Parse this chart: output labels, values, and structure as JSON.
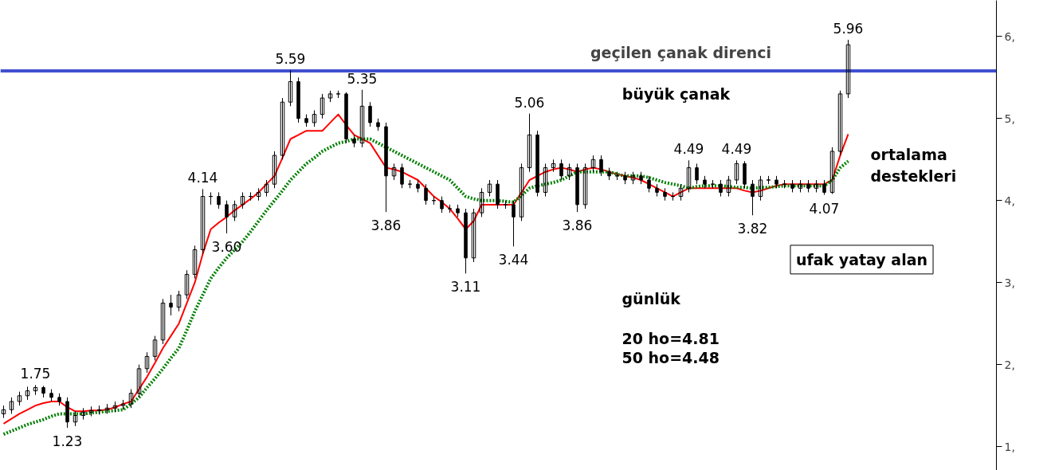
{
  "chart_data": {
    "type": "candlestick",
    "categories": [
      null,
      null,
      null,
      null,
      null,
      null,
      null,
      null,
      null,
      null,
      null,
      null,
      null,
      null,
      null,
      null,
      null,
      null,
      null,
      null,
      null,
      null,
      null,
      null,
      null,
      null,
      null,
      null,
      null,
      null,
      null,
      null,
      null,
      null,
      null,
      null,
      null,
      null,
      null,
      null,
      null,
      null,
      null,
      null,
      null,
      null,
      null,
      null,
      null,
      null,
      null,
      null,
      null,
      null,
      null,
      null,
      null,
      null,
      null,
      null,
      null,
      null,
      null,
      null,
      null,
      null,
      null,
      null,
      null,
      null,
      null,
      null,
      null,
      null,
      null,
      null,
      null,
      null,
      null,
      null,
      null,
      null,
      null,
      null,
      null,
      null,
      null,
      null,
      null,
      null,
      null,
      null,
      null,
      null,
      null,
      null,
      null,
      null,
      null,
      null,
      null,
      null,
      null,
      null,
      null,
      null,
      null
    ],
    "ohlc": [
      [
        1.4,
        1.5,
        1.35,
        1.45
      ],
      [
        1.45,
        1.6,
        1.4,
        1.55
      ],
      [
        1.55,
        1.67,
        1.5,
        1.62
      ],
      [
        1.62,
        1.73,
        1.57,
        1.68
      ],
      [
        1.68,
        1.75,
        1.63,
        1.72
      ],
      [
        1.72,
        1.74,
        1.6,
        1.65
      ],
      [
        1.65,
        1.7,
        1.55,
        1.6
      ],
      [
        1.6,
        1.65,
        1.5,
        1.55
      ],
      [
        1.55,
        1.6,
        1.23,
        1.3
      ],
      [
        1.3,
        1.43,
        1.25,
        1.38
      ],
      [
        1.38,
        1.47,
        1.33,
        1.42
      ],
      [
        1.42,
        1.49,
        1.37,
        1.44
      ],
      [
        1.44,
        1.5,
        1.39,
        1.45
      ],
      [
        1.45,
        1.52,
        1.4,
        1.47
      ],
      [
        1.47,
        1.55,
        1.42,
        1.5
      ],
      [
        1.5,
        1.57,
        1.45,
        1.52
      ],
      [
        1.52,
        1.7,
        1.47,
        1.65
      ],
      [
        1.65,
        2.0,
        1.6,
        1.95
      ],
      [
        1.95,
        2.15,
        1.9,
        2.1
      ],
      [
        2.1,
        2.35,
        2.05,
        2.3
      ],
      [
        2.3,
        2.8,
        2.25,
        2.75
      ],
      [
        2.75,
        2.85,
        2.6,
        2.7
      ],
      [
        2.7,
        2.9,
        2.65,
        2.85
      ],
      [
        2.85,
        3.15,
        2.8,
        3.1
      ],
      [
        3.1,
        3.45,
        3.05,
        3.4
      ],
      [
        3.4,
        4.14,
        3.35,
        4.05
      ],
      [
        4.05,
        4.1,
        3.95,
        4.05
      ],
      [
        4.05,
        4.1,
        3.9,
        3.95
      ],
      [
        3.95,
        4.0,
        3.6,
        3.8
      ],
      [
        3.8,
        4.0,
        3.75,
        3.95
      ],
      [
        3.95,
        4.1,
        3.9,
        4.05
      ],
      [
        4.05,
        4.1,
        4.0,
        4.05
      ],
      [
        4.05,
        4.15,
        4.0,
        4.1
      ],
      [
        4.1,
        4.25,
        4.05,
        4.2
      ],
      [
        4.2,
        4.6,
        4.15,
        4.55
      ],
      [
        4.55,
        5.25,
        4.5,
        5.2
      ],
      [
        5.2,
        5.59,
        5.15,
        5.45
      ],
      [
        5.45,
        5.5,
        4.95,
        5.0
      ],
      [
        5.0,
        5.05,
        4.9,
        4.95
      ],
      [
        4.95,
        5.1,
        4.9,
        5.05
      ],
      [
        5.05,
        5.3,
        5.0,
        5.25
      ],
      [
        5.25,
        5.34,
        5.2,
        5.3
      ],
      [
        5.3,
        5.34,
        5.25,
        5.3
      ],
      [
        5.3,
        5.32,
        4.7,
        4.75
      ],
      [
        4.75,
        4.8,
        4.65,
        4.7
      ],
      [
        4.7,
        5.35,
        4.65,
        5.15
      ],
      [
        5.15,
        5.2,
        4.9,
        4.95
      ],
      [
        4.95,
        5.0,
        4.85,
        4.9
      ],
      [
        4.9,
        4.95,
        3.86,
        4.3
      ],
      [
        4.3,
        4.45,
        4.25,
        4.4
      ],
      [
        4.4,
        4.45,
        4.15,
        4.2
      ],
      [
        4.2,
        4.25,
        4.15,
        4.2
      ],
      [
        4.2,
        4.25,
        4.1,
        4.15
      ],
      [
        4.15,
        4.2,
        3.95,
        4.0
      ],
      [
        4.0,
        4.05,
        3.95,
        4.0
      ],
      [
        4.0,
        4.05,
        3.85,
        3.9
      ],
      [
        3.9,
        3.95,
        3.85,
        3.9
      ],
      [
        3.9,
        3.95,
        3.8,
        3.85
      ],
      [
        3.85,
        3.9,
        3.11,
        3.3
      ],
      [
        3.3,
        3.9,
        3.25,
        3.85
      ],
      [
        3.85,
        4.15,
        3.8,
        4.1
      ],
      [
        4.1,
        4.25,
        4.05,
        4.2
      ],
      [
        4.2,
        4.25,
        3.9,
        3.95
      ],
      [
        3.95,
        4.0,
        3.9,
        3.95
      ],
      [
        3.95,
        4.0,
        3.44,
        3.8
      ],
      [
        3.8,
        4.45,
        3.75,
        4.4
      ],
      [
        4.4,
        5.06,
        4.35,
        4.8
      ],
      [
        4.8,
        4.85,
        4.05,
        4.1
      ],
      [
        4.1,
        4.45,
        4.05,
        4.4
      ],
      [
        4.4,
        4.5,
        4.35,
        4.45
      ],
      [
        4.45,
        4.5,
        4.25,
        4.3
      ],
      [
        4.3,
        4.45,
        4.25,
        4.4
      ],
      [
        4.4,
        4.45,
        3.86,
        3.95
      ],
      [
        3.95,
        4.45,
        3.9,
        4.4
      ],
      [
        4.4,
        4.55,
        4.35,
        4.5
      ],
      [
        4.5,
        4.55,
        4.3,
        4.35
      ],
      [
        4.35,
        4.4,
        4.25,
        4.3
      ],
      [
        4.3,
        4.35,
        4.25,
        4.3
      ],
      [
        4.3,
        4.35,
        4.2,
        4.25
      ],
      [
        4.25,
        4.35,
        4.2,
        4.3
      ],
      [
        4.3,
        4.35,
        4.2,
        4.25
      ],
      [
        4.25,
        4.3,
        4.1,
        4.15
      ],
      [
        4.15,
        4.2,
        4.05,
        4.1
      ],
      [
        4.1,
        4.15,
        4.0,
        4.05
      ],
      [
        4.05,
        4.1,
        4.0,
        4.05
      ],
      [
        4.05,
        4.2,
        4.0,
        4.15
      ],
      [
        4.15,
        4.49,
        4.1,
        4.4
      ],
      [
        4.4,
        4.45,
        4.2,
        4.25
      ],
      [
        4.25,
        4.3,
        4.15,
        4.2
      ],
      [
        4.2,
        4.25,
        4.15,
        4.2
      ],
      [
        4.2,
        4.25,
        4.05,
        4.1
      ],
      [
        4.1,
        4.3,
        4.05,
        4.25
      ],
      [
        4.25,
        4.49,
        4.2,
        4.45
      ],
      [
        4.45,
        4.48,
        4.15,
        4.2
      ],
      [
        4.2,
        4.25,
        3.82,
        4.05
      ],
      [
        4.05,
        4.3,
        4.0,
        4.25
      ],
      [
        4.25,
        4.3,
        4.2,
        4.25
      ],
      [
        4.25,
        4.3,
        4.15,
        4.2
      ],
      [
        4.2,
        4.25,
        4.15,
        4.2
      ],
      [
        4.2,
        4.25,
        4.1,
        4.15
      ],
      [
        4.15,
        4.25,
        4.1,
        4.2
      ],
      [
        4.2,
        4.25,
        4.1,
        4.15
      ],
      [
        4.15,
        4.25,
        4.1,
        4.2
      ],
      [
        4.2,
        4.25,
        4.07,
        4.1
      ],
      [
        4.1,
        4.65,
        4.08,
        4.6
      ],
      [
        4.6,
        5.34,
        4.55,
        5.3
      ],
      [
        5.3,
        5.96,
        5.25,
        5.9
      ]
    ],
    "series": [
      {
        "type": "line",
        "color": "#ff0000",
        "values": [
          1.28,
          1.34,
          1.4,
          1.45,
          1.5,
          1.53,
          1.55,
          1.55,
          1.48,
          1.43,
          1.43,
          1.44,
          1.44,
          1.45,
          1.48,
          1.52,
          1.55,
          1.7,
          1.85,
          2.02,
          2.2,
          2.35,
          2.5,
          2.75,
          3.0,
          3.35,
          3.65,
          3.73,
          3.8,
          3.88,
          3.95,
          4.02,
          4.1,
          4.2,
          4.3,
          4.52,
          4.75,
          4.8,
          4.85,
          4.85,
          4.85,
          4.95,
          5.05,
          4.92,
          4.8,
          4.75,
          4.7,
          4.55,
          4.4,
          4.38,
          4.35,
          4.3,
          4.25,
          4.15,
          4.05,
          3.98,
          3.9,
          3.78,
          3.65,
          3.75,
          3.95,
          3.95,
          3.95,
          3.95,
          3.95,
          4.1,
          4.25,
          4.3,
          4.35,
          4.38,
          4.4,
          4.38,
          4.35,
          4.38,
          4.4,
          4.38,
          4.35,
          4.32,
          4.3,
          4.28,
          4.25,
          4.2,
          4.15,
          4.1,
          4.05,
          4.1,
          4.15,
          4.15,
          4.15,
          4.15,
          4.15,
          4.15,
          4.15,
          4.12,
          4.1,
          4.12,
          4.15,
          4.18,
          4.2,
          4.2,
          4.2,
          4.2,
          4.2,
          4.2,
          4.25,
          4.55,
          4.81
        ]
      },
      {
        "type": "line",
        "color": "#008000",
        "line_style": "dotted",
        "values": [
          1.15,
          1.19,
          1.23,
          1.27,
          1.3,
          1.33,
          1.37,
          1.4,
          1.4,
          1.4,
          1.4,
          1.41,
          1.42,
          1.43,
          1.44,
          1.45,
          1.52,
          1.6,
          1.72,
          1.83,
          1.95,
          2.08,
          2.2,
          2.42,
          2.65,
          2.85,
          3.05,
          3.18,
          3.3,
          3.4,
          3.5,
          3.62,
          3.75,
          3.88,
          4.0,
          4.12,
          4.25,
          4.35,
          4.45,
          4.52,
          4.6,
          4.65,
          4.7,
          4.72,
          4.75,
          4.75,
          4.75,
          4.7,
          4.65,
          4.6,
          4.55,
          4.5,
          4.45,
          4.4,
          4.35,
          4.3,
          4.25,
          4.15,
          4.05,
          4.02,
          4.0,
          4.0,
          4.0,
          3.99,
          3.98,
          4.06,
          4.15,
          4.18,
          4.2,
          4.22,
          4.25,
          4.3,
          4.35,
          4.35,
          4.35,
          4.35,
          4.35,
          4.32,
          4.3,
          4.3,
          4.3,
          4.28,
          4.25,
          4.22,
          4.2,
          4.18,
          4.15,
          4.17,
          4.18,
          4.18,
          4.18,
          4.17,
          4.16,
          4.16,
          4.15,
          4.16,
          4.16,
          4.17,
          4.18,
          4.18,
          4.18,
          4.18,
          4.18,
          4.18,
          4.25,
          4.4,
          4.48
        ]
      }
    ],
    "ylim": [
      0.71,
      6.44
    ],
    "yticks": [
      {
        "value": 1,
        "label": "1,"
      },
      {
        "value": 2,
        "label": "2,"
      },
      {
        "value": 3,
        "label": "3,"
      },
      {
        "value": 4,
        "label": "4,"
      },
      {
        "value": 5,
        "label": "5,"
      },
      {
        "value": 6,
        "label": "6,"
      }
    ],
    "tick_labels": "y",
    "ref_lines": [
      {
        "axis": "y",
        "value": 5.58,
        "label": "geçilen çanak direnci",
        "color": "#4050d0"
      }
    ],
    "annotations": [
      {
        "text": "1.75",
        "y": 1.75
      },
      {
        "text": "1.23",
        "y": 1.23
      },
      {
        "text": "4.14",
        "y": 4.14
      },
      {
        "text": "3.60",
        "y": 3.6
      },
      {
        "text": "5.59",
        "y": 5.59
      },
      {
        "text": "5.35",
        "y": 5.35
      },
      {
        "text": "3.86",
        "y": 3.86
      },
      {
        "text": "3.11",
        "y": 3.11
      },
      {
        "text": "5.06",
        "y": 5.06
      },
      {
        "text": "3.44",
        "y": 3.44
      },
      {
        "text": "3.86",
        "y": 3.86
      },
      {
        "text": "4.49",
        "y": 4.49
      },
      {
        "text": "4.49",
        "y": 4.49
      },
      {
        "text": "3.82",
        "y": 3.82
      },
      {
        "text": "4.07",
        "y": 4.07
      },
      {
        "text": "5.96",
        "y": 5.96
      },
      "büyük çanak",
      "ufak yatay alan",
      "ortalama destekleri",
      "günlük",
      "20 ho=4.81",
      "50 ho=4.48"
    ]
  }
}
